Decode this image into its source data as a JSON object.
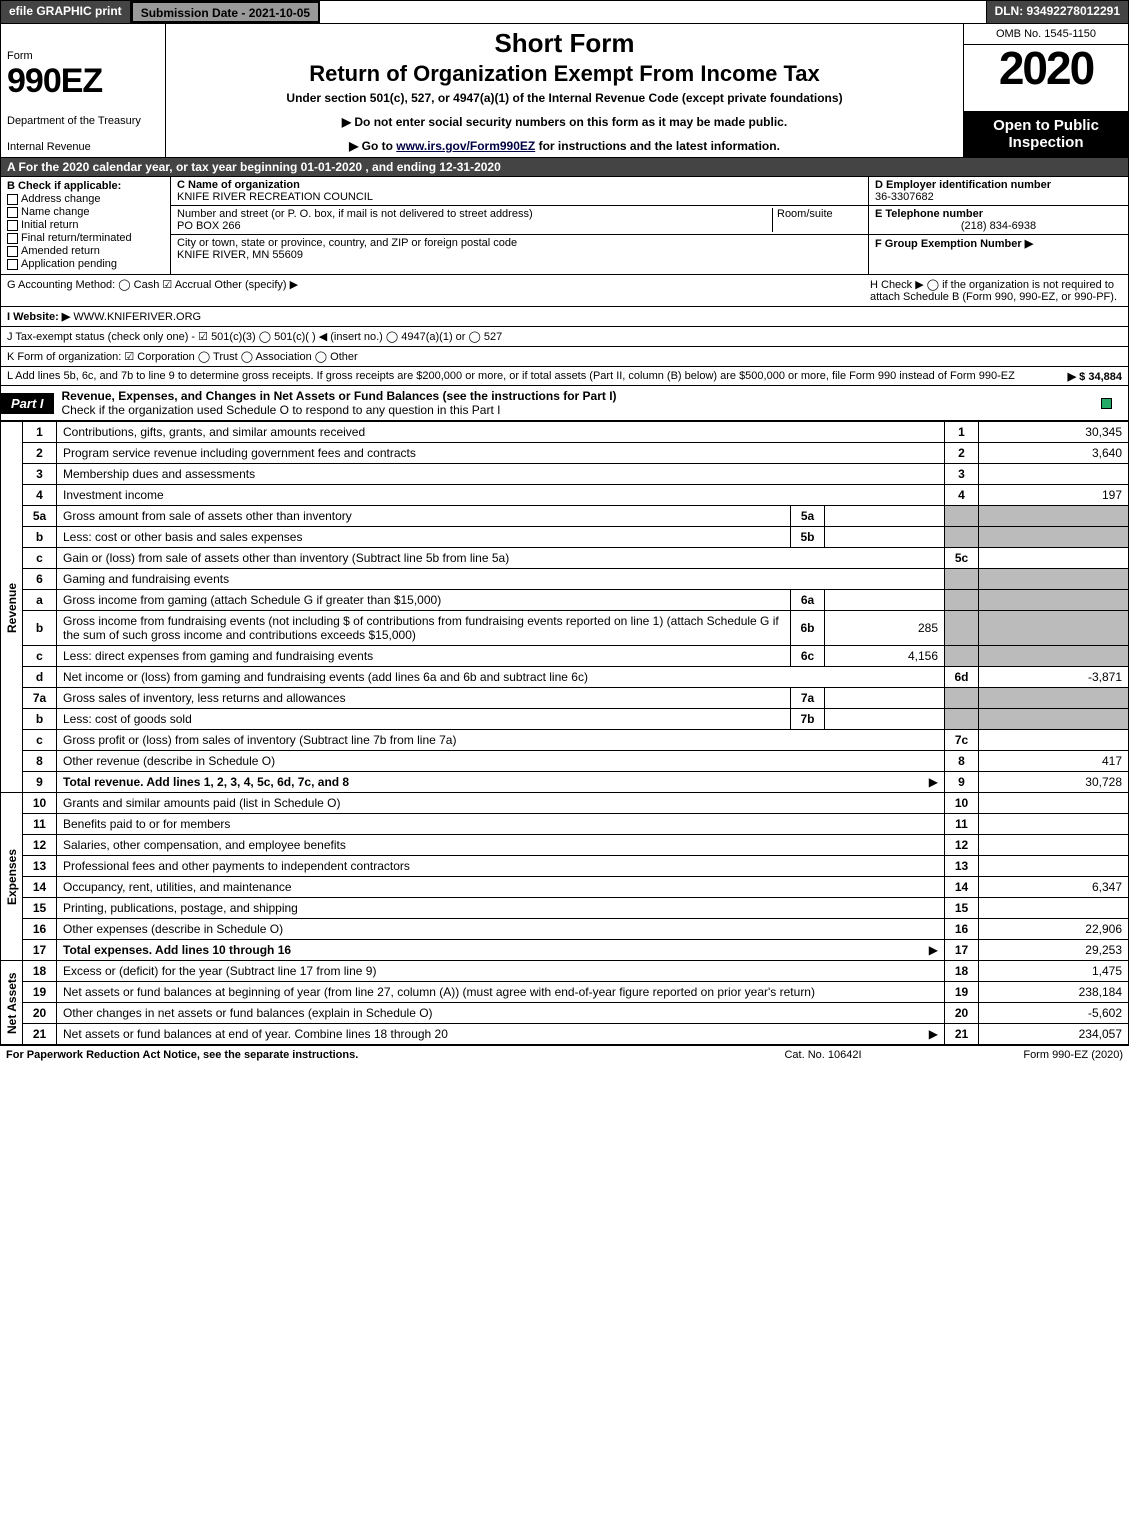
{
  "topbar": {
    "efile": "efile GRAPHIC print",
    "submission": "Submission Date - 2021-10-05",
    "dln": "DLN: 93492278012291"
  },
  "header": {
    "form_word": "Form",
    "form_num": "990EZ",
    "dept1": "Department of the Treasury",
    "dept2": "Internal Revenue",
    "title1": "Short Form",
    "title2": "Return of Organization Exempt From Income Tax",
    "subtitle": "Under section 501(c), 527, or 4947(a)(1) of the Internal Revenue Code (except private foundations)",
    "instr1": "▶ Do not enter social security numbers on this form as it may be made public.",
    "instr2_pre": "▶ Go to ",
    "instr2_link": "www.irs.gov/Form990EZ",
    "instr2_post": " for instructions and the latest information.",
    "omb": "OMB No. 1545-1150",
    "year": "2020",
    "open": "Open to Public Inspection"
  },
  "rowA": "A For the 2020 calendar year, or tax year beginning 01-01-2020 , and ending 12-31-2020",
  "sectionB": {
    "b_label": "B  Check if applicable:",
    "checks": [
      "Address change",
      "Name change",
      "Initial return",
      "Final return/terminated",
      "Amended return",
      "Application pending"
    ],
    "c_label": "C Name of organization",
    "c_name": "KNIFE RIVER RECREATION COUNCIL",
    "addr_label": "Number and street (or P. O. box, if mail is not delivered to street address)",
    "addr": "PO BOX 266",
    "room_label": "Room/suite",
    "city_label": "City or town, state or province, country, and ZIP or foreign postal code",
    "city": "KNIFE RIVER, MN  55609",
    "d_label": "D Employer identification number",
    "d_val": "36-3307682",
    "e_label": "E Telephone number",
    "e_val": "(218) 834-6938",
    "f_label": "F Group Exemption Number  ▶"
  },
  "meta": {
    "g": "G Accounting Method:   ◯ Cash   ☑ Accrual   Other (specify) ▶",
    "h": "H  Check ▶  ◯  if the organization is not required to attach Schedule B (Form 990, 990-EZ, or 990-PF).",
    "i_pre": "I Website: ▶",
    "i_val": "WWW.KNIFERIVER.ORG",
    "j": "J Tax-exempt status (check only one) -  ☑ 501(c)(3)  ◯ 501(c)(  ) ◀ (insert no.)  ◯ 4947(a)(1) or  ◯ 527",
    "k": "K Form of organization:   ☑ Corporation   ◯ Trust   ◯ Association   ◯ Other",
    "l_pre": "L Add lines 5b, 6c, and 7b to line 9 to determine gross receipts. If gross receipts are $200,000 or more, or if total assets (Part II, column (B) below) are $500,000 or more, file Form 990 instead of Form 990-EZ",
    "l_val": "▶ $ 34,884"
  },
  "part1": {
    "tab": "Part I",
    "title": "Revenue, Expenses, and Changes in Net Assets or Fund Balances (see the instructions for Part I)",
    "subtitle": "Check if the organization used Schedule O to respond to any question in this Part I"
  },
  "sections": {
    "revenue": "Revenue",
    "expenses": "Expenses",
    "netassets": "Net Assets"
  },
  "lines": [
    {
      "sec": "revenue",
      "no": "1",
      "desc": "Contributions, gifts, grants, and similar amounts received",
      "rno": "1",
      "rval": "30,345"
    },
    {
      "sec": "revenue",
      "no": "2",
      "desc": "Program service revenue including government fees and contracts",
      "rno": "2",
      "rval": "3,640"
    },
    {
      "sec": "revenue",
      "no": "3",
      "desc": "Membership dues and assessments",
      "rno": "3",
      "rval": ""
    },
    {
      "sec": "revenue",
      "no": "4",
      "desc": "Investment income",
      "rno": "4",
      "rval": "197"
    },
    {
      "sec": "revenue",
      "no": "5a",
      "desc": "Gross amount from sale of assets other than inventory",
      "subno": "5a",
      "subval": "",
      "grey": true
    },
    {
      "sec": "revenue",
      "no": "b",
      "desc": "Less: cost or other basis and sales expenses",
      "subno": "5b",
      "subval": "",
      "grey": true
    },
    {
      "sec": "revenue",
      "no": "c",
      "desc": "Gain or (loss) from sale of assets other than inventory (Subtract line 5b from line 5a)",
      "rno": "5c",
      "rval": ""
    },
    {
      "sec": "revenue",
      "no": "6",
      "desc": "Gaming and fundraising events",
      "grey": true,
      "noval": true
    },
    {
      "sec": "revenue",
      "no": "a",
      "desc": "Gross income from gaming (attach Schedule G if greater than $15,000)",
      "subno": "6a",
      "subval": "",
      "grey": true
    },
    {
      "sec": "revenue",
      "no": "b",
      "desc": "Gross income from fundraising events (not including $                      of contributions from fundraising events reported on line 1) (attach Schedule G if the sum of such gross income and contributions exceeds $15,000)",
      "subno": "6b",
      "subval": "285",
      "grey": true
    },
    {
      "sec": "revenue",
      "no": "c",
      "desc": "Less: direct expenses from gaming and fundraising events",
      "subno": "6c",
      "subval": "4,156",
      "grey": true
    },
    {
      "sec": "revenue",
      "no": "d",
      "desc": "Net income or (loss) from gaming and fundraising events (add lines 6a and 6b and subtract line 6c)",
      "rno": "6d",
      "rval": "-3,871"
    },
    {
      "sec": "revenue",
      "no": "7a",
      "desc": "Gross sales of inventory, less returns and allowances",
      "subno": "7a",
      "subval": "",
      "grey": true
    },
    {
      "sec": "revenue",
      "no": "b",
      "desc": "Less: cost of goods sold",
      "subno": "7b",
      "subval": "",
      "grey": true
    },
    {
      "sec": "revenue",
      "no": "c",
      "desc": "Gross profit or (loss) from sales of inventory (Subtract line 7b from line 7a)",
      "rno": "7c",
      "rval": ""
    },
    {
      "sec": "revenue",
      "no": "8",
      "desc": "Other revenue (describe in Schedule O)",
      "rno": "8",
      "rval": "417"
    },
    {
      "sec": "revenue",
      "no": "9",
      "desc": "Total revenue. Add lines 1, 2, 3, 4, 5c, 6d, 7c, and 8",
      "rno": "9",
      "rval": "30,728",
      "bold": true,
      "arrow": true
    },
    {
      "sec": "expenses",
      "no": "10",
      "desc": "Grants and similar amounts paid (list in Schedule O)",
      "rno": "10",
      "rval": ""
    },
    {
      "sec": "expenses",
      "no": "11",
      "desc": "Benefits paid to or for members",
      "rno": "11",
      "rval": ""
    },
    {
      "sec": "expenses",
      "no": "12",
      "desc": "Salaries, other compensation, and employee benefits",
      "rno": "12",
      "rval": ""
    },
    {
      "sec": "expenses",
      "no": "13",
      "desc": "Professional fees and other payments to independent contractors",
      "rno": "13",
      "rval": ""
    },
    {
      "sec": "expenses",
      "no": "14",
      "desc": "Occupancy, rent, utilities, and maintenance",
      "rno": "14",
      "rval": "6,347"
    },
    {
      "sec": "expenses",
      "no": "15",
      "desc": "Printing, publications, postage, and shipping",
      "rno": "15",
      "rval": ""
    },
    {
      "sec": "expenses",
      "no": "16",
      "desc": "Other expenses (describe in Schedule O)",
      "rno": "16",
      "rval": "22,906"
    },
    {
      "sec": "expenses",
      "no": "17",
      "desc": "Total expenses. Add lines 10 through 16",
      "rno": "17",
      "rval": "29,253",
      "bold": true,
      "arrow": true
    },
    {
      "sec": "netassets",
      "no": "18",
      "desc": "Excess or (deficit) for the year (Subtract line 17 from line 9)",
      "rno": "18",
      "rval": "1,475"
    },
    {
      "sec": "netassets",
      "no": "19",
      "desc": "Net assets or fund balances at beginning of year (from line 27, column (A)) (must agree with end-of-year figure reported on prior year's return)",
      "rno": "19",
      "rval": "238,184"
    },
    {
      "sec": "netassets",
      "no": "20",
      "desc": "Other changes in net assets or fund balances (explain in Schedule O)",
      "rno": "20",
      "rval": "-5,602"
    },
    {
      "sec": "netassets",
      "no": "21",
      "desc": "Net assets or fund balances at end of year. Combine lines 18 through 20",
      "rno": "21",
      "rval": "234,057",
      "arrow": true
    }
  ],
  "footer": {
    "left": "For Paperwork Reduction Act Notice, see the separate instructions.",
    "mid": "Cat. No. 10642I",
    "right": "Form 990-EZ (2020)"
  }
}
